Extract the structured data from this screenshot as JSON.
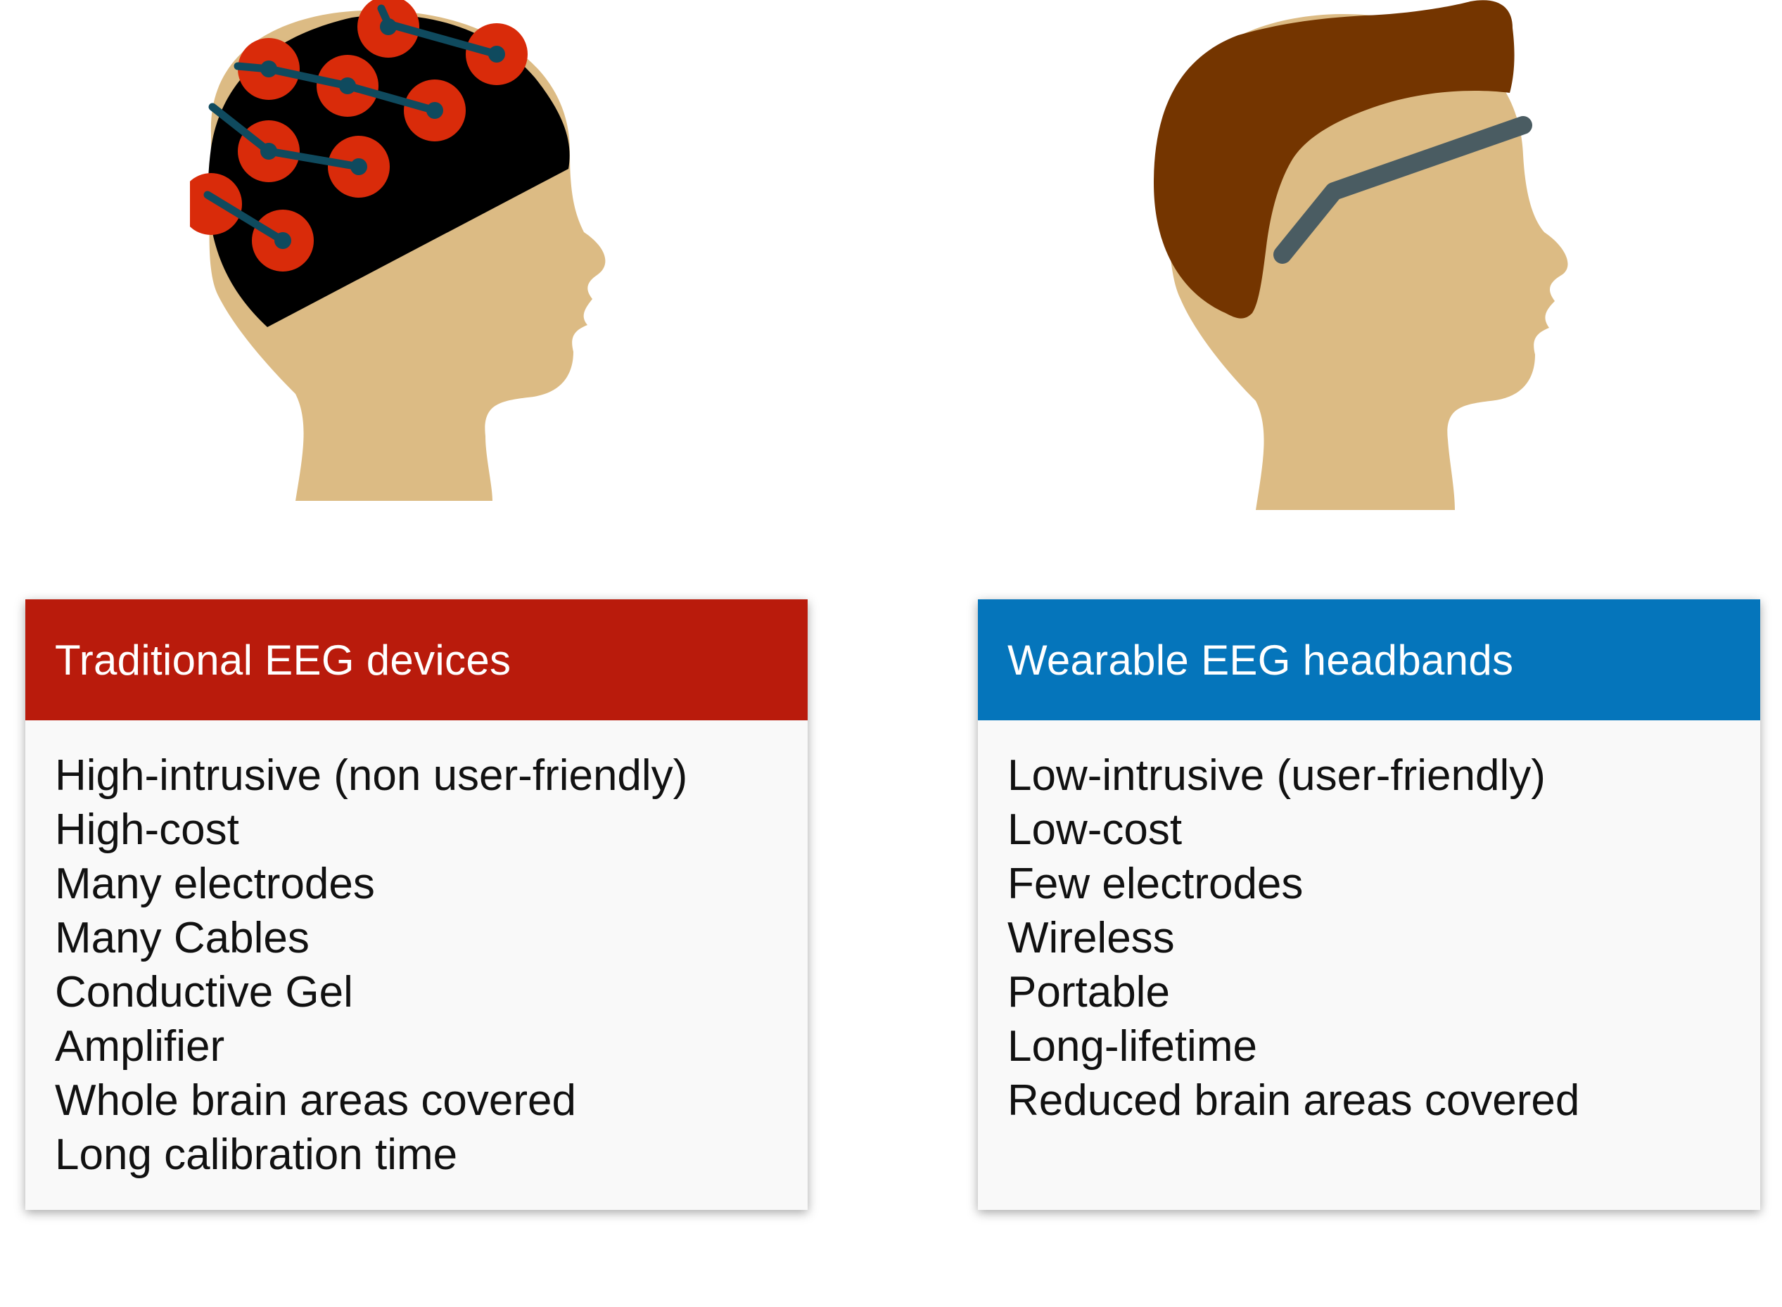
{
  "colors": {
    "traditional_header": "#b91b0c",
    "wearable_header": "#0575bb",
    "skin": "#dcbb84",
    "cap": "#000000",
    "electrode": "#d92b0a",
    "cable": "#0f4a5e",
    "hair": "#743500",
    "headband": "#4a5c62"
  },
  "illustrations": {
    "left": "head-with-eeg-cap-icon",
    "right": "head-with-eeg-headband-icon"
  },
  "traditional": {
    "title": "Traditional EEG devices",
    "items": [
      "High-intrusive (non user-friendly)",
      "High-cost",
      "Many electrodes",
      "Many Cables",
      "Conductive Gel",
      "Amplifier",
      "Whole brain areas covered",
      "Long calibration time"
    ]
  },
  "wearable": {
    "title": "Wearable EEG headbands",
    "items": [
      "Low-intrusive (user-friendly)",
      "Low-cost",
      "Few electrodes",
      "Wireless",
      "Portable",
      "Long-lifetime",
      "Reduced brain areas covered"
    ]
  }
}
